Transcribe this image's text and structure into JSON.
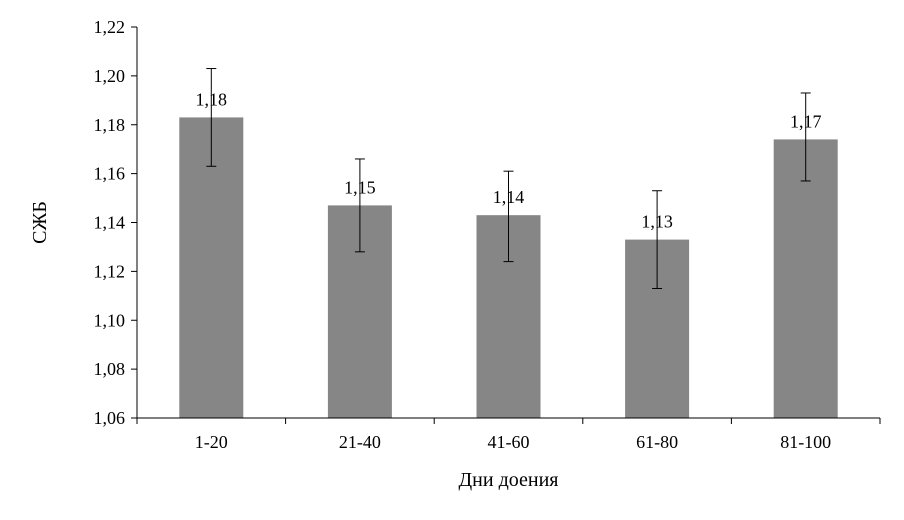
{
  "chart_data": {
    "type": "bar",
    "title": "",
    "xlabel": "Дни доения",
    "ylabel": "СЖБ",
    "categories": [
      "1-20",
      "21-40",
      "41-60",
      "61-80",
      "81-100"
    ],
    "values": [
      1.183,
      1.147,
      1.143,
      1.133,
      1.174
    ],
    "data_labels": [
      "1,18",
      "1,15",
      "1,14",
      "1,13",
      "1,17"
    ],
    "error_bars": [
      {
        "low": 1.163,
        "high": 1.203
      },
      {
        "low": 1.128,
        "high": 1.166
      },
      {
        "low": 1.124,
        "high": 1.161
      },
      {
        "low": 1.113,
        "high": 1.153
      },
      {
        "low": 1.157,
        "high": 1.193
      }
    ],
    "ylim": [
      1.06,
      1.22
    ],
    "yticks": [
      1.06,
      1.08,
      1.1,
      1.12,
      1.14,
      1.16,
      1.18,
      1.2,
      1.22
    ],
    "ytick_labels": [
      "1,06",
      "1,08",
      "1,10",
      "1,12",
      "1,14",
      "1,16",
      "1,18",
      "1,20",
      "1,22"
    ],
    "grid": false,
    "legend": "none",
    "bar_color": "#868686",
    "axis_color": "#000000"
  }
}
